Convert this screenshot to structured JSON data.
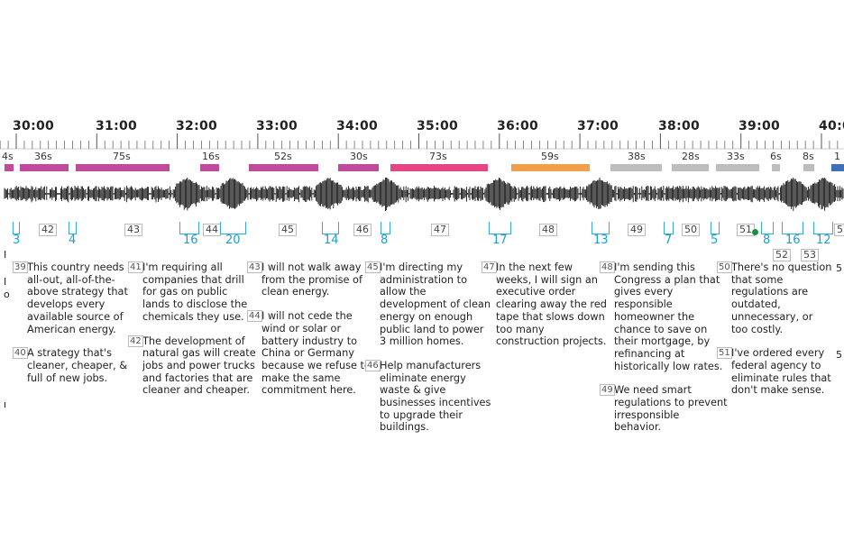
{
  "timeline": {
    "time_labels": [
      "30:00",
      "31:00",
      "32:00",
      "33:00",
      "34:00",
      "35:00",
      "36:00",
      "37:00",
      "38:00",
      "39:00",
      "40:0"
    ],
    "segments": [
      {
        "label": "4s",
        "color": "#c04b9e"
      },
      {
        "label": "36s",
        "color": "#c04b9e"
      },
      {
        "label": "75s",
        "color": "#c04b9e"
      },
      {
        "label": "16s",
        "color": "#c04b9e"
      },
      {
        "label": "52s",
        "color": "#c04b9e"
      },
      {
        "label": "30s",
        "color": "#c04b9e"
      },
      {
        "label": "73s",
        "color": "#e64584"
      },
      {
        "label": "59s",
        "color": "#f0a04b"
      },
      {
        "label": "38s",
        "color": "#bdbdbd"
      },
      {
        "label": "28s",
        "color": "#bdbdbd"
      },
      {
        "label": "33s",
        "color": "#bdbdbd"
      },
      {
        "label": "6s",
        "color": "#bdbdbd"
      },
      {
        "label": "8s",
        "color": "#bdbdbd"
      },
      {
        "label": "1",
        "color": "#3f6fb5"
      }
    ],
    "topic_numbers": [
      "42",
      "43",
      "44",
      "45",
      "46",
      "47",
      "48",
      "49",
      "50",
      "51",
      "52",
      "53",
      "5"
    ],
    "applause_marks": [
      "3",
      "4",
      "16",
      "20",
      "14",
      "8",
      "17",
      "13",
      "7",
      "5",
      "8",
      "16",
      "12"
    ]
  },
  "transcript": {
    "columns": [
      {
        "paras": [
          {
            "num": "39",
            "text": "This country needs an all-out, all-of-the-above strategy that develops every available source of American energy."
          },
          {
            "num": "40",
            "text": "A strategy that's cleaner, cheaper, & full of new jobs."
          }
        ]
      },
      {
        "paras": [
          {
            "num": "41",
            "text": "I'm requiring all companies that drill for gas on public lands to disclose the chemicals they use."
          },
          {
            "num": "42",
            "text": "The development of natural gas will create jobs and power trucks and factories that are cleaner and cheaper."
          }
        ]
      },
      {
        "paras": [
          {
            "num": "43",
            "text": "I will not walk away from the promise of clean energy."
          },
          {
            "num": "44",
            "text": "I will not cede the wind or solar or battery industry to China or Germany because we refuse to make the same commitment here."
          }
        ]
      },
      {
        "paras": [
          {
            "num": "45",
            "text": "I'm directing my administration to allow the development of clean energy on enough public land to power 3 million homes."
          },
          {
            "num": "46",
            "text": "Help manufacturers eliminate energy waste & give businesses incentives to upgrade their buildings."
          }
        ]
      },
      {
        "paras": [
          {
            "num": "47",
            "text": "In the next few weeks, I will sign an executive order clearing away the red tape that slows down too many construction projects."
          }
        ]
      },
      {
        "paras": [
          {
            "num": "48",
            "text": "I'm sending this Congress a plan that gives every responsible homeowner the chance to save on their mortgage, by refinancing at historically low rates."
          },
          {
            "num": "49",
            "text": "We need smart regulations to prevent irresponsible behavior."
          }
        ]
      },
      {
        "paras": [
          {
            "num": "50",
            "text": "There's no question that some regulations are outdated, unnecessary, or too costly."
          },
          {
            "num": "51",
            "text": "I've ordered every federal agency to eliminate rules that don't make sense."
          }
        ]
      }
    ]
  }
}
